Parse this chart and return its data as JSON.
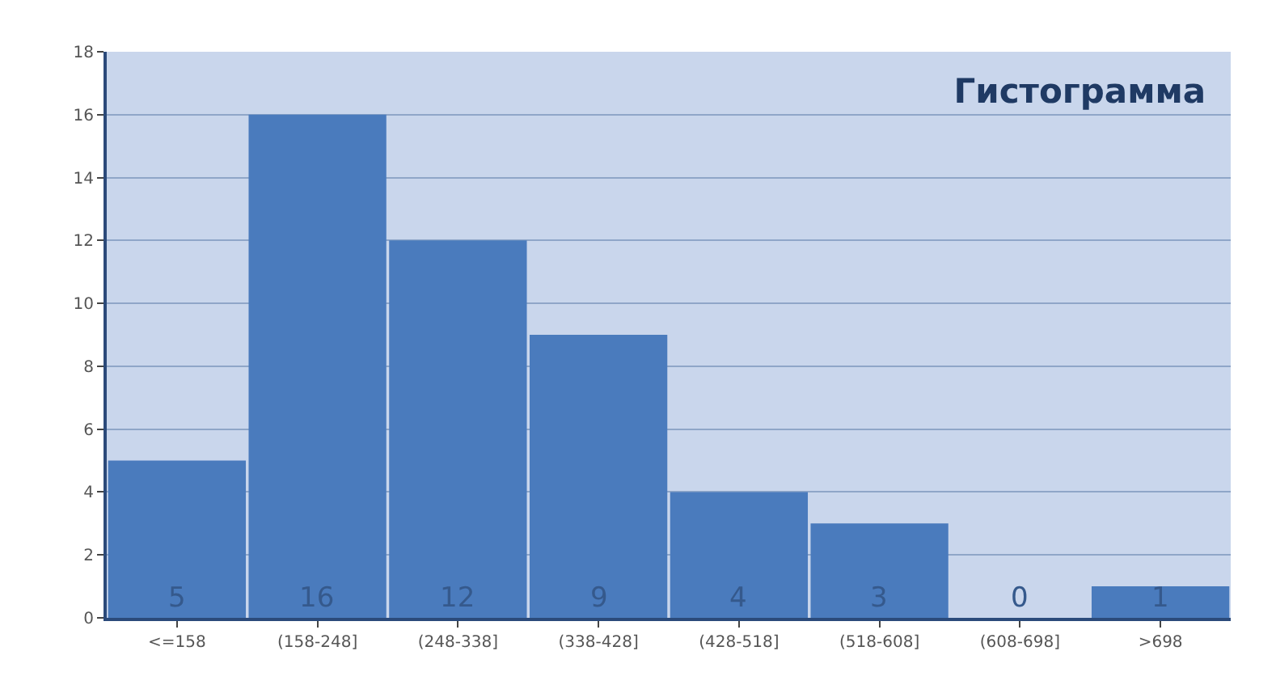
{
  "chart_data": {
    "type": "bar",
    "title": "Гистограмма",
    "categories": [
      "<=158",
      "(158-248]",
      "(248-338]",
      "(338-428]",
      "(428-518]",
      "(518-608]",
      "(608-698]",
      ">698"
    ],
    "values": [
      5,
      16,
      12,
      9,
      4,
      3,
      0,
      1
    ],
    "color": "#4a7bbd",
    "ylim": [
      0,
      18
    ],
    "yticks": [
      0,
      2,
      4,
      6,
      8,
      10,
      12,
      14,
      16,
      18
    ],
    "grid": "y",
    "data_labels": true,
    "legend": false
  }
}
